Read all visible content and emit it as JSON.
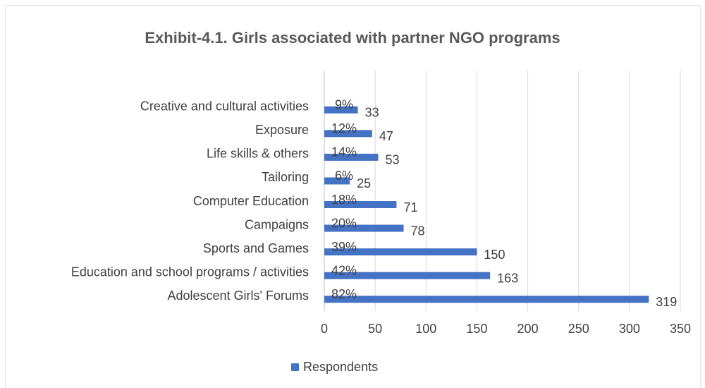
{
  "chart_data": {
    "type": "bar",
    "orientation": "horizontal",
    "title": "Exhibit-4.1. Girls associated with partner NGO programs",
    "categories": [
      "Creative and cultural activities",
      "Exposure",
      "Life skills & others",
      "Tailoring",
      "Computer Education",
      "Campaigns",
      "Sports and Games",
      "Education and school programs / activities",
      "Adolescent Girls' Forums"
    ],
    "series": [
      {
        "name": "Respondents",
        "color": "#4472c4",
        "values": [
          33,
          47,
          53,
          25,
          71,
          78,
          150,
          163,
          319
        ]
      }
    ],
    "percent_labels": [
      "9%",
      "12%",
      "14%",
      "6%",
      "18%",
      "20%",
      "39%",
      "42%",
      "82%"
    ],
    "xlim": [
      0,
      350
    ],
    "xticks": [
      0,
      50,
      100,
      150,
      200,
      250,
      300,
      350
    ],
    "grid": true,
    "legend": "bottom"
  }
}
